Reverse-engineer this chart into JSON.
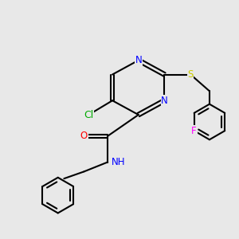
{
  "background_color": "#e8e8e8",
  "bond_color": "#000000",
  "bond_lw": 1.5,
  "atom_colors": {
    "N": "#0000ff",
    "O": "#ff0000",
    "S": "#cccc00",
    "Cl": "#00aa00",
    "F": "#ff00ff",
    "C": "#000000",
    "H": "#000000"
  },
  "font_size": 8.5
}
